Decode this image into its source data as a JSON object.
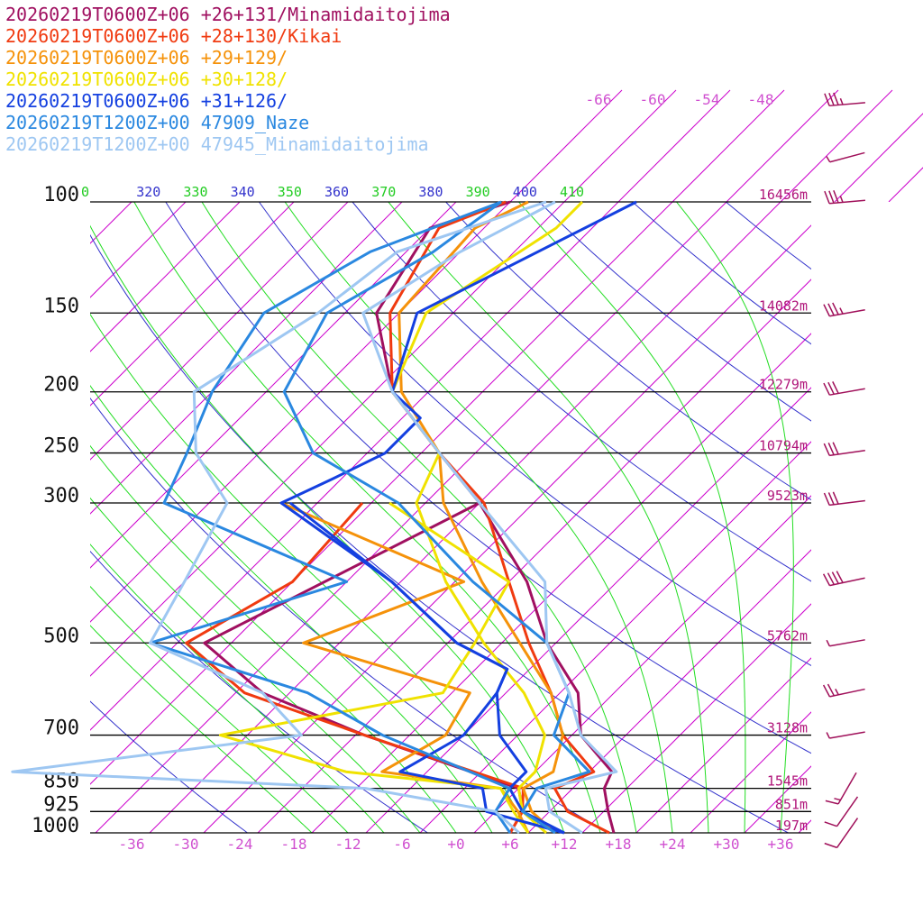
{
  "chart_data": {
    "type": "line",
    "chart_kind": "skew-T log-p sounding",
    "pressure_levels_hPa": [
      100,
      150,
      200,
      250,
      300,
      500,
      700,
      850,
      925,
      1000
    ],
    "pressure_range_hPa": [
      100,
      1000
    ],
    "temperature_range_C": [
      -40,
      40
    ],
    "temperature_ticks": [
      "-36",
      "-30",
      "-24",
      "-18",
      "-12",
      "-6",
      "+0",
      "+6",
      "+12",
      "+18",
      "+24",
      "+30",
      "+36"
    ],
    "height_labels": [
      {
        "p": 100,
        "label": "16456m"
      },
      {
        "p": 150,
        "label": "14082m"
      },
      {
        "p": 200,
        "label": "12279m"
      },
      {
        "p": 250,
        "label": "10794m"
      },
      {
        "p": 300,
        "label": "9523m"
      },
      {
        "p": 500,
        "label": "5762m"
      },
      {
        "p": 700,
        "label": "3128m"
      },
      {
        "p": 850,
        "label": "1545m"
      },
      {
        "p": 925,
        "label": "851m"
      },
      {
        "p": 1000,
        "label": "197m"
      }
    ],
    "theta_e_labels": [
      "0",
      "320",
      "330",
      "340",
      "350",
      "360",
      "370",
      "380",
      "390",
      "400",
      "410"
    ],
    "upper_temperature_labels": [
      "-66",
      "-60",
      "-54",
      "-48"
    ],
    "colors": {
      "isotherm": "#cc00cc",
      "dry_adiabat": "#3333cc",
      "moist_adiabat": "#22dd22",
      "isobar": "#000000",
      "axis_label": "#d050d0",
      "height_label": "#b0157a",
      "wind_barb": "#a0105a"
    },
    "series": [
      {
        "name": "20260219T0600Z+06 +26+131/Minamidaitojima",
        "color": "#a01060",
        "temperature": [
          [
            100,
            -64
          ],
          [
            110,
            -70
          ],
          [
            150,
            -66.5
          ],
          [
            200,
            -56
          ],
          [
            250,
            -44
          ],
          [
            300,
            -34
          ],
          [
            400,
            -20
          ],
          [
            500,
            -11
          ],
          [
            600,
            -2
          ],
          [
            700,
            3
          ],
          [
            800,
            10.5
          ],
          [
            850,
            11.5
          ],
          [
            925,
            14.5
          ],
          [
            1000,
            17.5
          ]
        ],
        "dewpoint": [
          [
            300,
            -34
          ],
          [
            500,
            -49
          ],
          [
            600,
            -37
          ],
          [
            700,
            -21
          ],
          [
            850,
            2
          ],
          [
            925,
            5
          ],
          [
            1000,
            6
          ]
        ]
      },
      {
        "name": "20260219T0600Z+06 +28+130/Kikai",
        "color": "#f03a10",
        "temperature": [
          [
            100,
            -64.5
          ],
          [
            110,
            -69
          ],
          [
            150,
            -65
          ],
          [
            200,
            -56
          ],
          [
            250,
            -44
          ],
          [
            300,
            -33.5
          ],
          [
            400,
            -22
          ],
          [
            500,
            -13
          ],
          [
            600,
            -5
          ],
          [
            700,
            1
          ],
          [
            800,
            8.5
          ],
          [
            850,
            6
          ],
          [
            925,
            10
          ],
          [
            1000,
            17
          ]
        ],
        "dewpoint": [
          [
            300,
            -47
          ],
          [
            400,
            -46
          ],
          [
            500,
            -51
          ],
          [
            600,
            -39
          ],
          [
            700,
            -21
          ],
          [
            850,
            2.5
          ],
          [
            925,
            5
          ],
          [
            1000,
            6
          ]
        ]
      },
      {
        "name": "20260219T0600Z+06 +29+129/",
        "color": "#f5920a",
        "temperature": [
          [
            100,
            -62
          ],
          [
            110,
            -65
          ],
          [
            150,
            -64
          ],
          [
            200,
            -55
          ],
          [
            250,
            -44
          ],
          [
            300,
            -38
          ],
          [
            400,
            -25
          ],
          [
            500,
            -14
          ],
          [
            600,
            -5
          ],
          [
            700,
            1
          ],
          [
            800,
            4
          ],
          [
            850,
            2.5
          ],
          [
            925,
            6
          ],
          [
            1000,
            11
          ]
        ],
        "dewpoint": [
          [
            300,
            -56
          ],
          [
            400,
            -27
          ],
          [
            500,
            -38
          ],
          [
            600,
            -14
          ],
          [
            700,
            -12
          ],
          [
            800,
            -15
          ],
          [
            850,
            0
          ],
          [
            925,
            4.5
          ],
          [
            1000,
            8
          ]
        ]
      },
      {
        "name": "20260219T0600Z+06 +30+128/",
        "color": "#f0e200",
        "temperature": [
          [
            100,
            -56
          ],
          [
            110,
            -56
          ],
          [
            150,
            -61
          ],
          [
            200,
            -56
          ],
          [
            250,
            -44
          ],
          [
            300,
            -41
          ],
          [
            400,
            -29
          ],
          [
            500,
            -18
          ],
          [
            600,
            -8
          ],
          [
            700,
            -1
          ],
          [
            800,
            2
          ],
          [
            850,
            2
          ],
          [
            925,
            5
          ],
          [
            1000,
            10
          ]
        ],
        "dewpoint": [
          [
            300,
            -44
          ],
          [
            400,
            -22
          ],
          [
            500,
            -19
          ],
          [
            600,
            -17
          ],
          [
            700,
            -37
          ],
          [
            800,
            -19
          ],
          [
            850,
            0
          ],
          [
            925,
            4
          ],
          [
            1000,
            8
          ]
        ]
      },
      {
        "name": "20260219T0600Z+06 +31+126/",
        "color": "#1440e0",
        "temperature": [
          [
            100,
            -50
          ],
          [
            150,
            -62
          ],
          [
            200,
            -56
          ],
          [
            220,
            -50
          ],
          [
            250,
            -50
          ],
          [
            275,
            -53
          ],
          [
            300,
            -56
          ],
          [
            400,
            -35
          ],
          [
            500,
            -21
          ],
          [
            550,
            -12.5
          ],
          [
            600,
            -11
          ],
          [
            700,
            -6
          ],
          [
            800,
            1
          ],
          [
            850,
            1
          ],
          [
            925,
            5
          ],
          [
            1000,
            12
          ]
        ],
        "dewpoint": [
          [
            300,
            -55
          ],
          [
            400,
            -35
          ],
          [
            500,
            -21
          ],
          [
            550,
            -12.5
          ],
          [
            600,
            -11
          ],
          [
            700,
            -10
          ],
          [
            800,
            -13
          ],
          [
            850,
            -2
          ],
          [
            925,
            1
          ],
          [
            1000,
            12
          ]
        ]
      },
      {
        "name": "20260219T1200Z+00 47909_Naze",
        "color": "#2a88e0",
        "temperature": [
          [
            100,
            -65
          ],
          [
            120,
            -67
          ],
          [
            150,
            -72
          ],
          [
            200,
            -68
          ],
          [
            250,
            -58
          ],
          [
            300,
            -43
          ],
          [
            400,
            -26
          ],
          [
            500,
            -11
          ],
          [
            600,
            -3
          ],
          [
            700,
            0
          ],
          [
            800,
            8
          ],
          [
            850,
            4
          ],
          [
            925,
            5
          ],
          [
            1000,
            11
          ]
        ],
        "dewpoint": [
          [
            100,
            -65
          ],
          [
            120,
            -74
          ],
          [
            150,
            -79
          ],
          [
            200,
            -76
          ],
          [
            250,
            -72
          ],
          [
            300,
            -69
          ],
          [
            400,
            -40
          ],
          [
            500,
            -55
          ],
          [
            600,
            -32
          ],
          [
            700,
            -19
          ],
          [
            850,
            1
          ],
          [
            925,
            2
          ],
          [
            1000,
            6
          ]
        ]
      },
      {
        "name": "20260219T1200Z+00 47945_Minamidaitojima",
        "color": "#9ec7f2",
        "temperature": [
          [
            100,
            -59
          ],
          [
            120,
            -64
          ],
          [
            150,
            -68
          ],
          [
            200,
            -56
          ],
          [
            250,
            -44
          ],
          [
            300,
            -34
          ],
          [
            400,
            -18
          ],
          [
            500,
            -11
          ],
          [
            600,
            -3
          ],
          [
            700,
            3
          ],
          [
            800,
            11
          ],
          [
            850,
            5
          ],
          [
            925,
            8
          ],
          [
            1000,
            14
          ]
        ],
        "dewpoint": [
          [
            100,
            -60
          ],
          [
            120,
            -71
          ],
          [
            150,
            -73
          ],
          [
            200,
            -78
          ],
          [
            250,
            -71
          ],
          [
            300,
            -62
          ],
          [
            400,
            -58
          ],
          [
            500,
            -55
          ],
          [
            600,
            -37
          ],
          [
            700,
            -28
          ],
          [
            800,
            -56
          ],
          [
            850,
            -15
          ],
          [
            925,
            2
          ],
          [
            1000,
            7
          ]
        ]
      }
    ],
    "wind_barbs": [
      {
        "p": 70,
        "dir": 265,
        "kt": 35
      },
      {
        "p": 85,
        "dir": 255,
        "kt": 5
      },
      {
        "p": 100,
        "dir": 265,
        "kt": 35
      },
      {
        "p": 150,
        "dir": 260,
        "kt": 35
      },
      {
        "p": 200,
        "dir": 260,
        "kt": 30
      },
      {
        "p": 250,
        "dir": 262,
        "kt": 30
      },
      {
        "p": 300,
        "dir": 263,
        "kt": 30
      },
      {
        "p": 400,
        "dir": 258,
        "kt": 40
      },
      {
        "p": 500,
        "dir": 260,
        "kt": 5
      },
      {
        "p": 600,
        "dir": 258,
        "kt": 25
      },
      {
        "p": 700,
        "dir": 260,
        "kt": 5
      },
      {
        "p": 850,
        "dir": 210,
        "kt": 15
      },
      {
        "p": 925,
        "dir": 215,
        "kt": 10
      },
      {
        "p": 1000,
        "dir": 215,
        "kt": 10
      }
    ]
  }
}
